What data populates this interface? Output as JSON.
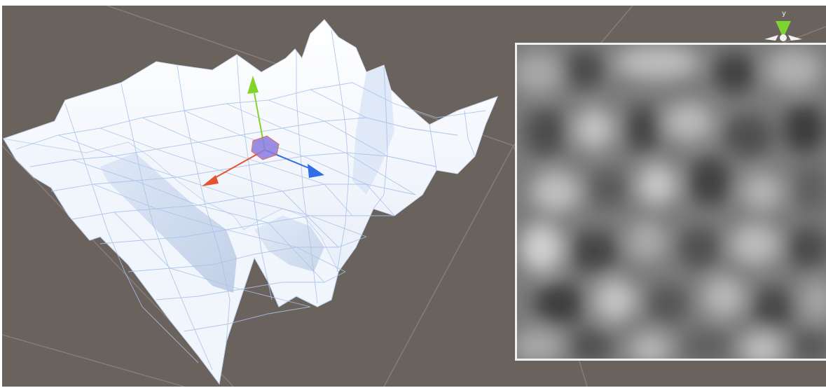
{
  "scene_view": {
    "background_color": "#6a625d",
    "grid_color": "#867d77",
    "terrain_color": "#eef3fb",
    "wireframe_color": "#a9c2ea"
  },
  "move_gizmo": {
    "x_axis_color": "#e5532f",
    "y_axis_color": "#83d42a",
    "z_axis_color": "#2f6ee6",
    "center_color": "#8a7ce0"
  },
  "scene_orientation_gizmo": {
    "y_axis_label": "y",
    "y_axis_color": "#7cd430",
    "handle_color": "#f2f2f2"
  },
  "heightmap_preview": {
    "border_color": "#eef0f0",
    "description_icon": "noise-heightmap-texture"
  }
}
